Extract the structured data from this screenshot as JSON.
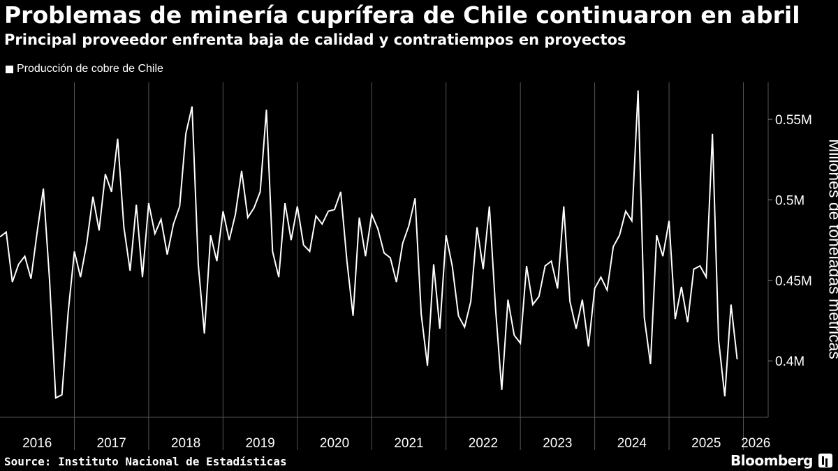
{
  "header": {
    "title": "Problemas de minería cuprífera de Chile continuaron en abril",
    "subtitle": "Principal proveedor enfrenta baja de calidad y contratiempos en proyectos"
  },
  "footer": {
    "source": "Source: Instituto Nacional de Estadísticas",
    "brand": "Bloomberg"
  },
  "colors": {
    "background": "#000000",
    "line": "#ffffff",
    "grid": "#555555"
  },
  "chart_data": {
    "type": "line",
    "title": "Problemas de minería cuprífera de Chile continuaron en abril",
    "subtitle": "Principal proveedor enfrenta baja de calidad y contratiempos en proyectos",
    "ylabel": "Millones de toneladas métricas",
    "xlabel": "",
    "y_axis_position": "right",
    "legend_position": "top-left",
    "grid": "vertical-year-lines",
    "x_start": "2016-01",
    "x_frequency": "monthly",
    "xlim": [
      "2016-01",
      "2026-05"
    ],
    "ylim": [
      0.365,
      0.573
    ],
    "y_ticks": [
      {
        "value": 0.55,
        "label": "0.55M"
      },
      {
        "value": 0.5,
        "label": "0.5M"
      },
      {
        "value": 0.45,
        "label": "0.45M"
      },
      {
        "value": 0.4,
        "label": "0.4M"
      }
    ],
    "x_ticks": [
      "2016",
      "2017",
      "2018",
      "2019",
      "2020",
      "2021",
      "2022",
      "2023",
      "2024",
      "2025",
      "2026"
    ],
    "series": [
      {
        "name": "Producción de cobre de Chile",
        "values": [
          0.477,
          0.48,
          0.449,
          0.46,
          0.465,
          0.451,
          0.48,
          0.507,
          0.45,
          0.377,
          0.379,
          0.43,
          0.468,
          0.452,
          0.473,
          0.502,
          0.481,
          0.516,
          0.505,
          0.538,
          0.483,
          0.456,
          0.497,
          0.452,
          0.498,
          0.479,
          0.488,
          0.466,
          0.485,
          0.496,
          0.541,
          0.558,
          0.46,
          0.417,
          0.478,
          0.462,
          0.493,
          0.475,
          0.491,
          0.518,
          0.489,
          0.495,
          0.505,
          0.556,
          0.468,
          0.452,
          0.498,
          0.475,
          0.496,
          0.472,
          0.468,
          0.49,
          0.485,
          0.493,
          0.494,
          0.505,
          0.462,
          0.428,
          0.489,
          0.465,
          0.491,
          0.482,
          0.467,
          0.464,
          0.449,
          0.473,
          0.484,
          0.501,
          0.429,
          0.397,
          0.46,
          0.42,
          0.478,
          0.459,
          0.428,
          0.421,
          0.437,
          0.483,
          0.457,
          0.496,
          0.432,
          0.382,
          0.438,
          0.416,
          0.411,
          0.459,
          0.435,
          0.44,
          0.459,
          0.462,
          0.445,
          0.496,
          0.437,
          0.42,
          0.438,
          0.409,
          0.445,
          0.452,
          0.444,
          0.471,
          0.478,
          0.493,
          0.487,
          0.568,
          0.427,
          0.398,
          0.478,
          0.465,
          0.487,
          0.426,
          0.446,
          0.424,
          0.457,
          0.459,
          0.452,
          0.541,
          0.413,
          0.378,
          0.435,
          0.401
        ]
      }
    ]
  }
}
